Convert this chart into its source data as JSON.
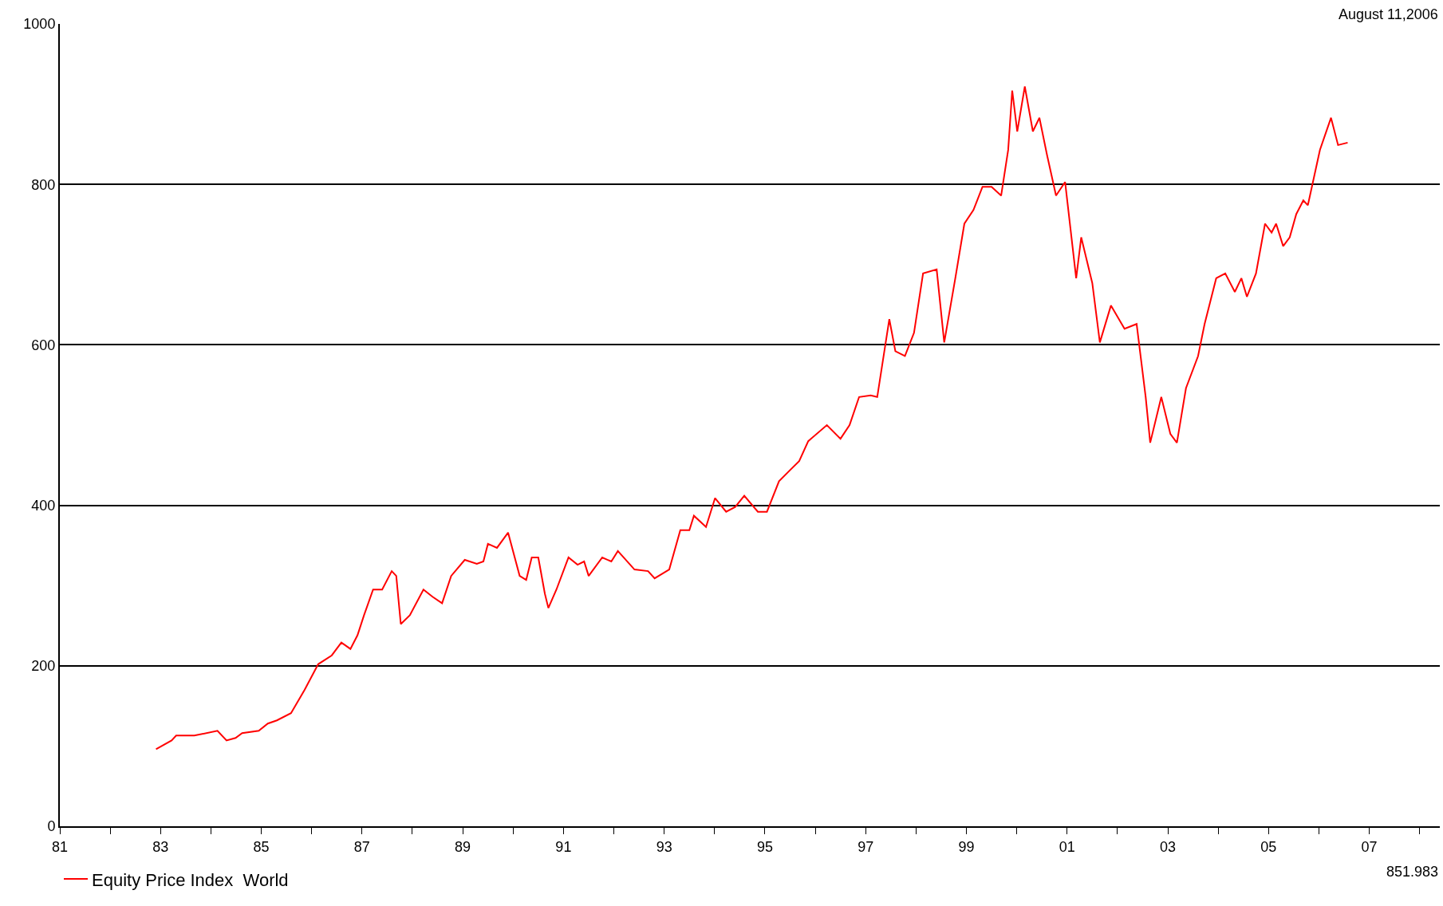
{
  "chart_data": {
    "type": "line",
    "annotations": [
      "August 11,2006",
      "851.983"
    ],
    "x": [
      1982.91,
      1983.22,
      1983.31,
      1983.67,
      1984.13,
      1984.31,
      1984.49,
      1984.62,
      1984.95,
      1985.13,
      1985.31,
      1985.59,
      1985.86,
      1986.13,
      1986.4,
      1986.59,
      1986.77,
      1986.91,
      1987.04,
      1987.22,
      1987.4,
      1987.59,
      1987.68,
      1987.77,
      1987.95,
      1988.22,
      1988.4,
      1988.59,
      1988.77,
      1989.04,
      1989.28,
      1989.41,
      1989.5,
      1989.68,
      1989.9,
      1990.13,
      1990.26,
      1990.37,
      1990.5,
      1990.63,
      1990.7,
      1990.86,
      1991.1,
      1991.28,
      1991.41,
      1991.5,
      1991.77,
      1991.95,
      1992.08,
      1992.41,
      1992.68,
      1992.81,
      1993.1,
      1993.32,
      1993.5,
      1993.59,
      1993.83,
      1994.01,
      1994.23,
      1994.41,
      1994.59,
      1994.86,
      1995.04,
      1995.28,
      1995.5,
      1995.68,
      1995.86,
      1996.23,
      1996.5,
      1996.68,
      1996.87,
      1997.1,
      1997.23,
      1997.47,
      1997.59,
      1997.78,
      1997.96,
      1998.14,
      1998.41,
      1998.56,
      1998.78,
      1998.96,
      1999.14,
      1999.32,
      1999.5,
      1999.69,
      1999.83,
      1999.91,
      2000.01,
      2000.16,
      2000.32,
      2000.45,
      2000.6,
      2000.78,
      2000.96,
      2001.18,
      2001.28,
      2001.5,
      2001.65,
      2001.87,
      2002.14,
      2002.38,
      2002.56,
      2002.65,
      2002.87,
      2003.05,
      2003.18,
      2003.36,
      2003.6,
      2003.73,
      2003.96,
      2004.14,
      2004.33,
      2004.46,
      2004.57,
      2004.75,
      2004.93,
      2005.06,
      2005.15,
      2005.29,
      2005.42,
      2005.55,
      2005.69,
      2005.78,
      2006.02,
      2006.24,
      2006.38,
      2006.57
    ],
    "series": [
      {
        "name": "Equity Price Index  World",
        "color": "#ff0000",
        "values": [
          96,
          107,
          113,
          113,
          119,
          107,
          110,
          116,
          119,
          128,
          132,
          141,
          170,
          202,
          213,
          229,
          221,
          238,
          263,
          295,
          295,
          318,
          312,
          252,
          263,
          295,
          286,
          278,
          312,
          332,
          327,
          330,
          352,
          347,
          366,
          312,
          307,
          335,
          335,
          290,
          272,
          295,
          335,
          326,
          330,
          312,
          335,
          330,
          343,
          320,
          318,
          309,
          320,
          369,
          369,
          387,
          373,
          409,
          392,
          398,
          412,
          392,
          392,
          430,
          444,
          455,
          480,
          500,
          483,
          500,
          535,
          537,
          535,
          632,
          592,
          586,
          615,
          689,
          694,
          603,
          683,
          751,
          768,
          797,
          797,
          786,
          843,
          917,
          866,
          922,
          866,
          883,
          837,
          786,
          803,
          683,
          734,
          677,
          603,
          649,
          620,
          626,
          535,
          478,
          535,
          489,
          478,
          546,
          586,
          626,
          683,
          689,
          666,
          683,
          660,
          689,
          751,
          740,
          751,
          723,
          734,
          763,
          780,
          774,
          843,
          883,
          849,
          852
        ]
      }
    ],
    "xlim": [
      1981,
      2008.4
    ],
    "xticks": [
      {
        "value": 1981,
        "label": "81"
      },
      {
        "value": 1982,
        "label": null
      },
      {
        "value": 1983,
        "label": "83"
      },
      {
        "value": 1984,
        "label": null
      },
      {
        "value": 1985,
        "label": "85"
      },
      {
        "value": 1986,
        "label": null
      },
      {
        "value": 1987,
        "label": "87"
      },
      {
        "value": 1988,
        "label": null
      },
      {
        "value": 1989,
        "label": "89"
      },
      {
        "value": 1990,
        "label": null
      },
      {
        "value": 1991,
        "label": "91"
      },
      {
        "value": 1992,
        "label": null
      },
      {
        "value": 1993,
        "label": "93"
      },
      {
        "value": 1994,
        "label": null
      },
      {
        "value": 1995,
        "label": "95"
      },
      {
        "value": 1996,
        "label": null
      },
      {
        "value": 1997,
        "label": "97"
      },
      {
        "value": 1998,
        "label": null
      },
      {
        "value": 1999,
        "label": "99"
      },
      {
        "value": 2000,
        "label": null
      },
      {
        "value": 2001,
        "label": "01"
      },
      {
        "value": 2002,
        "label": null
      },
      {
        "value": 2003,
        "label": "03"
      },
      {
        "value": 2004,
        "label": null
      },
      {
        "value": 2005,
        "label": "05"
      },
      {
        "value": 2006,
        "label": null
      },
      {
        "value": 2007,
        "label": "07"
      },
      {
        "value": 2008,
        "label": null
      }
    ],
    "ylim": [
      0,
      1000
    ],
    "yticks": [
      0,
      200,
      400,
      600,
      800,
      1000
    ],
    "grid": "y",
    "legend": "bottom left",
    "marker": "none",
    "line_style": "solid"
  }
}
